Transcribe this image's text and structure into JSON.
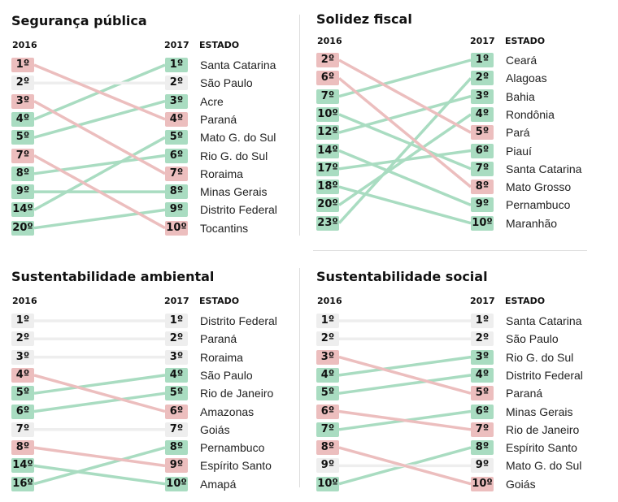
{
  "labels": {
    "year_from": "2016",
    "year_to": "2017",
    "state_header": "ESTADO"
  },
  "colors": {
    "up": "#a9dcc1",
    "down": "#ecbebe",
    "same": "#eeeeee"
  },
  "panels": [
    {
      "title": "Segurança pública",
      "rows": [
        {
          "state": "Santa Catarina",
          "rank2016": 4,
          "rank2017": 1
        },
        {
          "state": "São Paulo",
          "rank2016": 2,
          "rank2017": 2
        },
        {
          "state": "Acre",
          "rank2016": 5,
          "rank2017": 3
        },
        {
          "state": "Paraná",
          "rank2016": 1,
          "rank2017": 4
        },
        {
          "state": "Mato G. do Sul",
          "rank2016": 14,
          "rank2017": 5
        },
        {
          "state": "Rio G. do Sul",
          "rank2016": 8,
          "rank2017": 6
        },
        {
          "state": "Roraima",
          "rank2016": 3,
          "rank2017": 7
        },
        {
          "state": "Minas Gerais",
          "rank2016": 9,
          "rank2017": 8
        },
        {
          "state": "Distrito Federal",
          "rank2016": 20,
          "rank2017": 9
        },
        {
          "state": "Tocantins",
          "rank2016": 7,
          "rank2017": 10
        }
      ]
    },
    {
      "title": "Solidez fiscal",
      "rows": [
        {
          "state": "Ceará",
          "rank2016": 7,
          "rank2017": 1
        },
        {
          "state": "Alagoas",
          "rank2016": 23,
          "rank2017": 2
        },
        {
          "state": "Bahia",
          "rank2016": 12,
          "rank2017": 3
        },
        {
          "state": "Rondônia",
          "rank2016": 20,
          "rank2017": 4
        },
        {
          "state": "Pará",
          "rank2016": 2,
          "rank2017": 5
        },
        {
          "state": "Piauí",
          "rank2016": 17,
          "rank2017": 6
        },
        {
          "state": "Santa Catarina",
          "rank2016": 10,
          "rank2017": 7
        },
        {
          "state": "Mato Grosso",
          "rank2016": 6,
          "rank2017": 8
        },
        {
          "state": "Pernambuco",
          "rank2016": 14,
          "rank2017": 9
        },
        {
          "state": "Maranhão",
          "rank2016": 18,
          "rank2017": 10
        }
      ]
    },
    {
      "title": "Sustentabilidade ambiental",
      "rows": [
        {
          "state": "Distrito Federal",
          "rank2016": 1,
          "rank2017": 1
        },
        {
          "state": "Paraná",
          "rank2016": 2,
          "rank2017": 2
        },
        {
          "state": "Roraima",
          "rank2016": 3,
          "rank2017": 3
        },
        {
          "state": "São Paulo",
          "rank2016": 5,
          "rank2017": 4
        },
        {
          "state": "Rio de Janeiro",
          "rank2016": 6,
          "rank2017": 5
        },
        {
          "state": "Amazonas",
          "rank2016": 4,
          "rank2017": 6
        },
        {
          "state": "Goiás",
          "rank2016": 7,
          "rank2017": 7
        },
        {
          "state": "Pernambuco",
          "rank2016": 16,
          "rank2017": 8
        },
        {
          "state": "Espírito Santo",
          "rank2016": 8,
          "rank2017": 9
        },
        {
          "state": "Amapá",
          "rank2016": 14,
          "rank2017": 10
        }
      ]
    },
    {
      "title": "Sustentabilidade social",
      "rows": [
        {
          "state": "Santa Catarina",
          "rank2016": 1,
          "rank2017": 1
        },
        {
          "state": "São Paulo",
          "rank2016": 2,
          "rank2017": 2
        },
        {
          "state": "Rio G. do Sul",
          "rank2016": 4,
          "rank2017": 3
        },
        {
          "state": "Distrito Federal",
          "rank2016": 5,
          "rank2017": 4
        },
        {
          "state": "Paraná",
          "rank2016": 3,
          "rank2017": 5
        },
        {
          "state": "Minas Gerais",
          "rank2016": 7,
          "rank2017": 6
        },
        {
          "state": "Rio de Janeiro",
          "rank2016": 6,
          "rank2017": 7
        },
        {
          "state": "Espírito Santo",
          "rank2016": 10,
          "rank2017": 8
        },
        {
          "state": "Mato G. do Sul",
          "rank2016": 9,
          "rank2017": 9
        },
        {
          "state": "Goiás",
          "rank2016": 8,
          "rank2017": 10
        }
      ]
    }
  ]
}
